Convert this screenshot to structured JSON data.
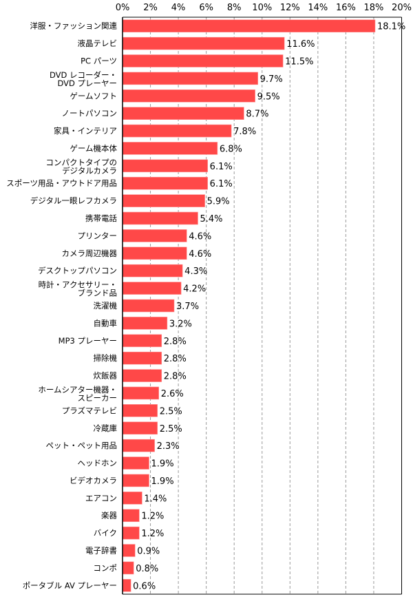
{
  "chart_data": {
    "type": "bar",
    "orientation": "horizontal",
    "title": "",
    "xlabel": "",
    "ylabel": "",
    "xlim": [
      0,
      20
    ],
    "x_ticks": [
      "0%",
      "2%",
      "4%",
      "6%",
      "8%",
      "10%",
      "12%",
      "14%",
      "16%",
      "18%",
      "20%"
    ],
    "grid": "vertical dashed",
    "bar_color": "#ff4848",
    "categories": [
      [
        "洋服・ファッション関連"
      ],
      [
        "液晶テレビ"
      ],
      [
        "PC パーツ"
      ],
      [
        "DVD レコーダー・",
        "DVD プレーヤー"
      ],
      [
        "ゲームソフト"
      ],
      [
        "ノートパソコン"
      ],
      [
        "家具・インテリア"
      ],
      [
        "ゲーム機本体"
      ],
      [
        "コンパクトタイプの",
        "デジタルカメラ"
      ],
      [
        "スポーツ用品・アウトドア用品"
      ],
      [
        "デジタル一眼レフカメラ"
      ],
      [
        "携帯電話"
      ],
      [
        "プリンター"
      ],
      [
        "カメラ周辺機器"
      ],
      [
        "デスクトップパソコン"
      ],
      [
        "時計・アクセサリー・",
        "ブランド品"
      ],
      [
        "洗濯機"
      ],
      [
        "自動車"
      ],
      [
        "MP3 プレーヤー"
      ],
      [
        "掃除機"
      ],
      [
        "炊飯器"
      ],
      [
        "ホームシアター機器・",
        "スピーカー"
      ],
      [
        "プラズマテレビ"
      ],
      [
        "冷蔵庫"
      ],
      [
        "ペット・ペット用品"
      ],
      [
        "ヘッドホン"
      ],
      [
        "ビデオカメラ"
      ],
      [
        "エアコン"
      ],
      [
        "楽器"
      ],
      [
        "バイク"
      ],
      [
        "電子辞書"
      ],
      [
        "コンポ"
      ],
      [
        "ポータブル AV プレーヤー"
      ]
    ],
    "values": [
      18.1,
      11.6,
      11.5,
      9.7,
      9.5,
      8.7,
      7.8,
      6.8,
      6.1,
      6.1,
      5.9,
      5.4,
      4.6,
      4.6,
      4.3,
      4.2,
      3.7,
      3.2,
      2.8,
      2.8,
      2.8,
      2.6,
      2.5,
      2.5,
      2.3,
      1.9,
      1.9,
      1.4,
      1.2,
      1.2,
      0.9,
      0.8,
      0.6
    ],
    "value_labels": [
      "18.1%",
      "11.6%",
      "11.5%",
      "9.7%",
      "9.5%",
      "8.7%",
      "7.8%",
      "6.8%",
      "6.1%",
      "6.1%",
      "5.9%",
      "5.4%",
      "4.6%",
      "4.6%",
      "4.3%",
      "4.2%",
      "3.7%",
      "3.2%",
      "2.8%",
      "2.8%",
      "2.8%",
      "2.6%",
      "2.5%",
      "2.5%",
      "2.3%",
      "1.9%",
      "1.9%",
      "1.4%",
      "1.2%",
      "1.2%",
      "0.9%",
      "0.8%",
      "0.6%"
    ]
  }
}
